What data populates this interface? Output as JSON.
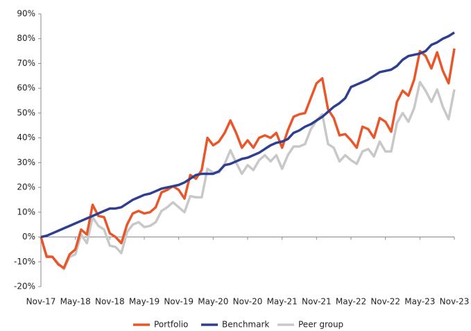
{
  "chart_data": {
    "type": "line",
    "categories": [
      "Nov-17",
      null,
      null,
      null,
      null,
      null,
      "May-18",
      null,
      null,
      null,
      null,
      null,
      "Nov-18",
      null,
      null,
      null,
      null,
      null,
      "May-19",
      null,
      null,
      null,
      null,
      null,
      "Nov-19",
      null,
      null,
      null,
      null,
      null,
      "May-20",
      null,
      null,
      null,
      null,
      null,
      "Nov-20",
      null,
      null,
      null,
      null,
      null,
      "May-21",
      null,
      null,
      null,
      null,
      null,
      "Nov-21",
      null,
      null,
      null,
      null,
      null,
      "May-22",
      null,
      null,
      null,
      null,
      null,
      "Nov-22",
      null,
      null,
      null,
      null,
      null,
      "May-23",
      null,
      null,
      null,
      null,
      null,
      "Nov-23"
    ],
    "series": [
      {
        "name": "Portfolio",
        "color": "#e8562a",
        "values": [
          0,
          -8,
          -8,
          -11,
          -12.5,
          -7,
          -5,
          3,
          1,
          13,
          8.5,
          8,
          1.5,
          0,
          -2.5,
          5,
          9.5,
          10.5,
          9.5,
          10,
          12,
          18,
          19,
          20.5,
          19,
          15.5,
          25,
          23.5,
          27,
          40,
          37,
          38.5,
          42,
          47,
          42,
          36,
          39,
          36,
          40,
          41,
          40,
          42,
          36,
          43,
          48.5,
          49.5,
          50,
          56,
          62,
          64,
          51.5,
          48,
          41,
          41.5,
          39,
          36,
          44.5,
          43.5,
          40,
          48,
          46.5,
          42.5,
          54.5,
          59,
          57,
          63.5,
          75,
          73,
          68,
          74.5,
          67,
          62,
          76
        ]
      },
      {
        "name": "Benchmark",
        "color": "#2e3f8f",
        "values": [
          0,
          0.5,
          1.5,
          2.5,
          3.5,
          4.5,
          5.5,
          6.5,
          7.5,
          8.5,
          9.5,
          10.5,
          11.5,
          11.5,
          12,
          13.5,
          15,
          16,
          17,
          17.5,
          18.5,
          19.5,
          20,
          20.5,
          21,
          22,
          23.5,
          25,
          25.5,
          25.5,
          25.5,
          26.5,
          29,
          29.5,
          30.5,
          31.5,
          32,
          33,
          34,
          35.5,
          37,
          38,
          38.5,
          39.5,
          42,
          43,
          44.5,
          45.5,
          47,
          48.5,
          50.5,
          52.5,
          54,
          56,
          60.5,
          61.5,
          62.5,
          63.5,
          65,
          66.5,
          67,
          67.5,
          69,
          71.5,
          73,
          73.5,
          74,
          75,
          77.5,
          78.5,
          80,
          81,
          82.5
        ]
      },
      {
        "name": "Peer group",
        "color": "#c8c8c8",
        "values": [
          0,
          -7.5,
          -8,
          -10.5,
          -13,
          -8,
          -7,
          1,
          -2.5,
          8,
          4.5,
          3,
          -3.5,
          -4,
          -6.5,
          2,
          5,
          6,
          4,
          4.5,
          6,
          10.5,
          12,
          14,
          12,
          10,
          16.5,
          16,
          16,
          27.5,
          26,
          26,
          29.5,
          35,
          30,
          25.5,
          29,
          27,
          31,
          33,
          30.5,
          33,
          27.5,
          33,
          36.5,
          36.5,
          37.5,
          43.5,
          47,
          49.5,
          37.5,
          36,
          30.5,
          33,
          31,
          29.5,
          34.5,
          35.5,
          32.5,
          38.5,
          34.5,
          34.5,
          46,
          50,
          46.5,
          52,
          62.5,
          59,
          54.5,
          59.5,
          52.5,
          47.5,
          59.5
        ]
      }
    ],
    "ylim": [
      -20,
      90
    ],
    "yticks": [
      {
        "value": -20,
        "label": "-20%"
      },
      {
        "value": -10,
        "label": "-10%"
      },
      {
        "value": 0,
        "label": "0%"
      },
      {
        "value": 10,
        "label": "10%"
      },
      {
        "value": 20,
        "label": "20%"
      },
      {
        "value": 30,
        "label": "30%"
      },
      {
        "value": 40,
        "label": "40%"
      },
      {
        "value": 50,
        "label": "50%"
      },
      {
        "value": 60,
        "label": "60%"
      },
      {
        "value": 70,
        "label": "70%"
      },
      {
        "value": 80,
        "label": "80%"
      },
      {
        "value": 90,
        "label": "90%"
      }
    ],
    "grid": false,
    "legend": "bottom"
  }
}
